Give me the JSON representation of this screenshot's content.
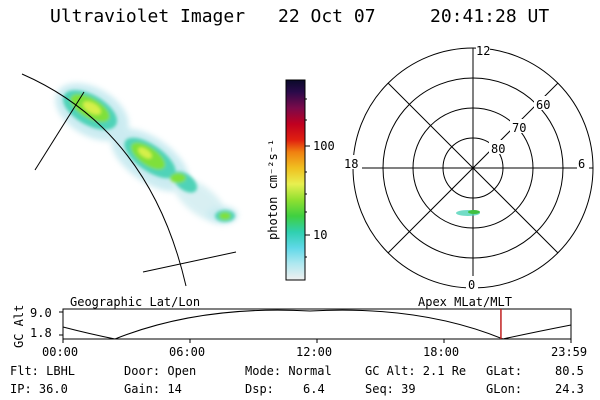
{
  "header": {
    "instrument": "Ultraviolet Imager",
    "date": "22 Oct 07",
    "time": "20:41:28 UT"
  },
  "colorbar": {
    "label": "photon cm⁻²s⁻¹",
    "ticks": [
      {
        "label": "100",
        "value": 100
      },
      {
        "label": "10",
        "value": 10
      }
    ]
  },
  "polar": {
    "mlt_labels": {
      "top": "12",
      "left": "18",
      "right": "6",
      "bottom": "0"
    },
    "lat_labels": [
      "60",
      "70",
      "80"
    ]
  },
  "timeline": {
    "ylabel": "GC Alt",
    "ymax": "9.0",
    "ymin": "1.8",
    "left_title": "Geographic Lat/Lon",
    "right_title": "Apex MLat/MLT",
    "ticks": [
      "00:00",
      "06:00",
      "12:00",
      "18:00",
      "23:59"
    ],
    "current_time_hours": 20.69
  },
  "status": {
    "filter": "Flt: LBHL",
    "ip": "IP: 36.0",
    "door": "Door: Open",
    "gain": "Gain: 14",
    "mode": "Mode: Normal",
    "dsp_label": "Dsp:",
    "dsp_value": "6.4",
    "gcalt": "GC Alt: 2.1 Re",
    "seq": "Seq: 39",
    "glat_label": "GLat:",
    "glat_value": "80.5",
    "glon_label": "GLon:",
    "glon_value": "24.3"
  }
}
